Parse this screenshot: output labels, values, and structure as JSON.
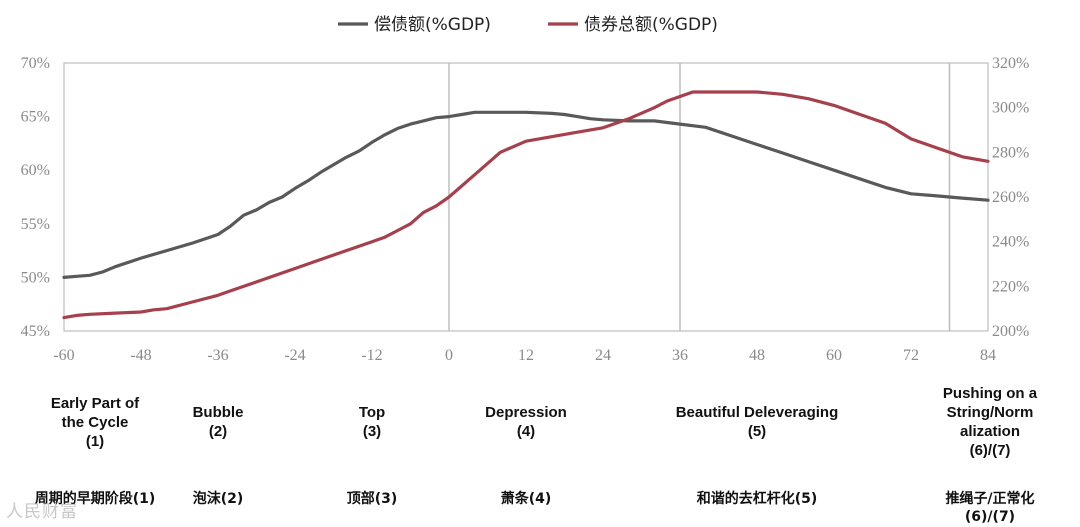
{
  "chart_data": {
    "type": "line",
    "series": [
      {
        "name": "偿债额(%GDP)",
        "axis": "left",
        "color": "#58595b",
        "points": [
          [
            -60,
            50.0
          ],
          [
            -58,
            50.1
          ],
          [
            -56,
            50.2
          ],
          [
            -54,
            50.5
          ],
          [
            -52,
            51.0
          ],
          [
            -48,
            51.8
          ],
          [
            -44,
            52.5
          ],
          [
            -40,
            53.2
          ],
          [
            -36,
            54.0
          ],
          [
            -34,
            54.8
          ],
          [
            -32,
            55.8
          ],
          [
            -30,
            56.3
          ],
          [
            -28,
            57.0
          ],
          [
            -26,
            57.5
          ],
          [
            -24,
            58.3
          ],
          [
            -22,
            59.0
          ],
          [
            -20,
            59.8
          ],
          [
            -18,
            60.5
          ],
          [
            -16,
            61.2
          ],
          [
            -14,
            61.8
          ],
          [
            -12,
            62.6
          ],
          [
            -10,
            63.3
          ],
          [
            -8,
            63.9
          ],
          [
            -6,
            64.3
          ],
          [
            -4,
            64.6
          ],
          [
            -2,
            64.9
          ],
          [
            0,
            65.0
          ],
          [
            2,
            65.2
          ],
          [
            4,
            65.4
          ],
          [
            8,
            65.4
          ],
          [
            12,
            65.4
          ],
          [
            16,
            65.3
          ],
          [
            18,
            65.2
          ],
          [
            20,
            65.0
          ],
          [
            22,
            64.8
          ],
          [
            24,
            64.7
          ],
          [
            28,
            64.6
          ],
          [
            32,
            64.6
          ],
          [
            36,
            64.3
          ],
          [
            40,
            64.0
          ],
          [
            44,
            63.2
          ],
          [
            48,
            62.4
          ],
          [
            52,
            61.6
          ],
          [
            56,
            60.8
          ],
          [
            60,
            60.0
          ],
          [
            64,
            59.2
          ],
          [
            68,
            58.4
          ],
          [
            72,
            57.8
          ],
          [
            76,
            57.6
          ],
          [
            80,
            57.4
          ],
          [
            84,
            57.2
          ]
        ]
      },
      {
        "name": "债券总额(%GDP)",
        "axis": "right",
        "color": "#a5404c",
        "points": [
          [
            -60,
            206
          ],
          [
            -58,
            207
          ],
          [
            -56,
            207.5
          ],
          [
            -52,
            208
          ],
          [
            -48,
            208.5
          ],
          [
            -46,
            209.5
          ],
          [
            -44,
            210
          ],
          [
            -40,
            213
          ],
          [
            -36,
            216
          ],
          [
            -34,
            218
          ],
          [
            -30,
            222
          ],
          [
            -24,
            228
          ],
          [
            -20,
            232
          ],
          [
            -16,
            236
          ],
          [
            -12,
            240
          ],
          [
            -10,
            242
          ],
          [
            -8,
            245
          ],
          [
            -6,
            248
          ],
          [
            -4,
            253
          ],
          [
            -2,
            256
          ],
          [
            0,
            260
          ],
          [
            4,
            270
          ],
          [
            8,
            280
          ],
          [
            12,
            285
          ],
          [
            16,
            287
          ],
          [
            20,
            289
          ],
          [
            24,
            291
          ],
          [
            28,
            295
          ],
          [
            32,
            300
          ],
          [
            34,
            303
          ],
          [
            36,
            305
          ],
          [
            38,
            307
          ],
          [
            48,
            307
          ],
          [
            52,
            306
          ],
          [
            56,
            304
          ],
          [
            60,
            301
          ],
          [
            64,
            297
          ],
          [
            68,
            293
          ],
          [
            72,
            286
          ],
          [
            76,
            282
          ],
          [
            80,
            278
          ],
          [
            84,
            276
          ]
        ]
      }
    ],
    "left_axis": {
      "min": 45,
      "max": 70,
      "ticks": [
        "45%",
        "50%",
        "55%",
        "60%",
        "65%",
        "70%"
      ]
    },
    "right_axis": {
      "min": 200,
      "max": 320,
      "ticks": [
        "200%",
        "220%",
        "240%",
        "260%",
        "280%",
        "300%",
        "320%"
      ]
    },
    "x_axis": {
      "min": -60,
      "max": 84,
      "ticks": [
        "-60",
        "-48",
        "-36",
        "-24",
        "-12",
        "0",
        "12",
        "24",
        "36",
        "48",
        "60",
        "72",
        "84"
      ]
    },
    "vertical_markers": [
      0,
      36,
      78
    ],
    "legend_position": "top-center",
    "phases": [
      {
        "x": -60,
        "en": "Early Part of\nthe Cycle\n(1)",
        "cn": "周期的早期阶段(1)"
      },
      {
        "x": -36,
        "en": "Bubble\n(2)",
        "cn": "泡沫(2)"
      },
      {
        "x": -12,
        "en": "Top\n(3)",
        "cn": "顶部(3)"
      },
      {
        "x": 12,
        "en": "Depression\n(4)",
        "cn": "萧条(4)"
      },
      {
        "x": 48,
        "en": "Beautiful Deleveraging\n(5)",
        "cn": "和谐的去杠杆化(5)"
      },
      {
        "x": 84,
        "en": "Pushing on a\nString/Norm\nalization\n(6)/(7)",
        "cn": "推绳子/正常化\n(6)/(7)"
      }
    ]
  },
  "watermark": "人民财富"
}
